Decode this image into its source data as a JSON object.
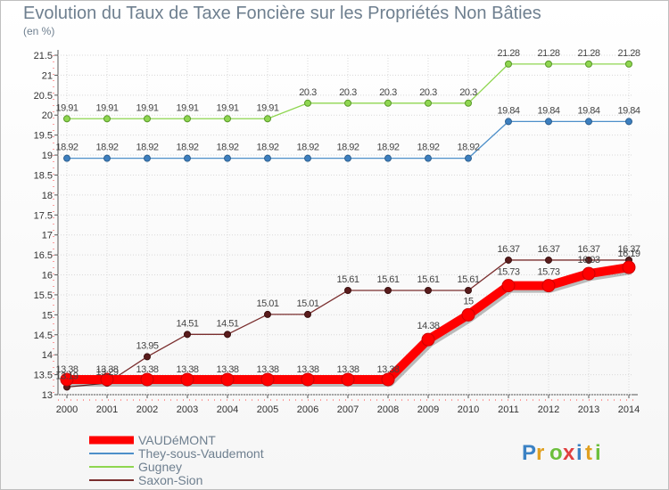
{
  "chart_data": {
    "type": "line",
    "title": "Evolution du Taux de Taxe Foncière sur les Propriétés Non Bâties",
    "subtitle": "(en %)",
    "xlabel": "",
    "ylabel": "(en %)",
    "ylim": [
      13,
      21.5
    ],
    "yticks": [
      "13",
      "13.5",
      "14",
      "14.5",
      "15",
      "15.5",
      "16",
      "16.5",
      "17",
      "17.5",
      "18",
      "18.5",
      "19",
      "19.5",
      "20",
      "20.5",
      "21",
      "21.5"
    ],
    "x": [
      "2000",
      "2001",
      "2002",
      "2003",
      "2004",
      "2005",
      "2006",
      "2007",
      "2008",
      "2009",
      "2010",
      "2011",
      "2012",
      "2013",
      "2014"
    ],
    "series": [
      {
        "name": "VAUDéMONT",
        "color": "#ff0000",
        "values": [
          13.38,
          13.38,
          13.38,
          13.38,
          13.38,
          13.38,
          13.38,
          13.38,
          13.38,
          14.38,
          15,
          15.73,
          15.73,
          16.03,
          16.19
        ],
        "labels": [
          "13.38",
          "13.38",
          "13.38",
          "13.38",
          "13.38",
          "13.38",
          "13.38",
          "13.38",
          "13.38",
          "14.38",
          "15",
          "15.73",
          "15.73",
          "16.03",
          "16.19"
        ]
      },
      {
        "name": "They-sous-Vaudemont",
        "color": "#4d8fc9",
        "values": [
          18.92,
          18.92,
          18.92,
          18.92,
          18.92,
          18.92,
          18.92,
          18.92,
          18.92,
          18.92,
          18.92,
          19.84,
          19.84,
          19.84,
          19.84
        ],
        "labels": [
          "18.92",
          "18.92",
          "18.92",
          "18.92",
          "18.92",
          "18.92",
          "18.92",
          "18.92",
          "18.92",
          "18.92",
          "18.92",
          "19.84",
          "19.84",
          "19.84",
          "19.84"
        ]
      },
      {
        "name": "Gugney",
        "color": "#8fd650",
        "values": [
          19.91,
          19.91,
          19.91,
          19.91,
          19.91,
          19.91,
          20.3,
          20.3,
          20.3,
          20.3,
          20.3,
          21.28,
          21.28,
          21.28,
          21.28
        ],
        "labels": [
          "19.91",
          "19.91",
          "19.91",
          "19.91",
          "19.91",
          "19.91",
          "20.3",
          "20.3",
          "20.3",
          "20.3",
          "20.3",
          "21.28",
          "21.28",
          "21.28",
          "21.28"
        ]
      },
      {
        "name": "Saxon-Sion",
        "color": "#7a2e2e",
        "values": [
          13.19,
          13.29,
          13.95,
          14.51,
          14.51,
          15.01,
          15.01,
          15.61,
          15.61,
          15.61,
          15.61,
          16.37,
          16.37,
          16.37,
          16.37
        ],
        "labels": [
          "13.19",
          "13.29",
          "13.95",
          "14.51",
          "14.51",
          "15.01",
          "15.01",
          "15.61",
          "15.61",
          "15.61",
          "15.61",
          "16.37",
          "16.37",
          "16.37",
          "16.37"
        ]
      }
    ],
    "legend_position": "bottom-left"
  },
  "brand": {
    "logo_text": "Proxiti"
  }
}
